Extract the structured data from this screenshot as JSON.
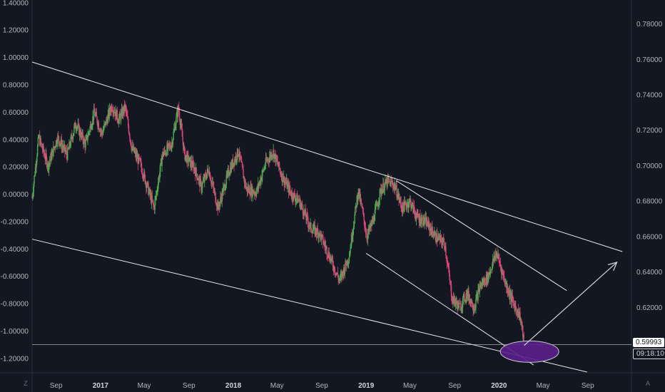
{
  "chart_data": {
    "type": "candlestick",
    "title": "",
    "left_axis": {
      "ylim": [
        -1.3,
        1.42
      ],
      "ticks": [
        "1.40000",
        "1.20000",
        "1.00000",
        "0.80000",
        "0.60000",
        "0.40000",
        "0.20000",
        "0.00000",
        "-0.20000",
        "-0.40000",
        "-0.60000",
        "-0.80000",
        "-1.00000",
        "-1.20000"
      ]
    },
    "right_axis": {
      "ylim": [
        0.5835,
        0.7935
      ],
      "ticks": [
        "0.78000",
        "0.76000",
        "0.74000",
        "0.72000",
        "0.70000",
        "0.68000",
        "0.66000",
        "0.64000",
        "0.62000"
      ]
    },
    "x_axis": {
      "ticks": [
        {
          "label": "Sep",
          "date": "2016-09-01"
        },
        {
          "label": "2017",
          "date": "2017-01-01",
          "bold": true
        },
        {
          "label": "May",
          "date": "2017-05-01"
        },
        {
          "label": "Sep",
          "date": "2017-09-01"
        },
        {
          "label": "2018",
          "date": "2018-01-01",
          "bold": true
        },
        {
          "label": "May",
          "date": "2018-05-01"
        },
        {
          "label": "Sep",
          "date": "2018-09-01"
        },
        {
          "label": "2019",
          "date": "2019-01-01",
          "bold": true
        },
        {
          "label": "May",
          "date": "2019-05-01"
        },
        {
          "label": "Sep",
          "date": "2019-09-01"
        },
        {
          "label": "2020",
          "date": "2020-01-01",
          "bold": true
        },
        {
          "label": "May",
          "date": "2020-05-01"
        },
        {
          "label": "Sep",
          "date": "2020-09-01"
        }
      ]
    },
    "price_path": [
      [
        "2016-06-27",
        0.682
      ],
      [
        "2016-07-15",
        0.716
      ],
      [
        "2016-08-10",
        0.7
      ],
      [
        "2016-09-05",
        0.716
      ],
      [
        "2016-10-01",
        0.706
      ],
      [
        "2016-10-25",
        0.724
      ],
      [
        "2016-11-20",
        0.712
      ],
      [
        "2016-12-15",
        0.73
      ],
      [
        "2017-01-05",
        0.718
      ],
      [
        "2017-02-01",
        0.734
      ],
      [
        "2017-02-20",
        0.726
      ],
      [
        "2017-03-10",
        0.733
      ],
      [
        "2017-03-28",
        0.71
      ],
      [
        "2017-04-20",
        0.701
      ],
      [
        "2017-05-10",
        0.688
      ],
      [
        "2017-05-28",
        0.676
      ],
      [
        "2017-06-20",
        0.706
      ],
      [
        "2017-07-15",
        0.712
      ],
      [
        "2017-08-03",
        0.733
      ],
      [
        "2017-08-20",
        0.706
      ],
      [
        "2017-09-15",
        0.699
      ],
      [
        "2017-10-05",
        0.688
      ],
      [
        "2017-10-25",
        0.698
      ],
      [
        "2017-11-20",
        0.676
      ],
      [
        "2017-12-20",
        0.697
      ],
      [
        "2018-01-15",
        0.708
      ],
      [
        "2018-02-05",
        0.687
      ],
      [
        "2018-03-05",
        0.685
      ],
      [
        "2018-04-01",
        0.702
      ],
      [
        "2018-04-20",
        0.708
      ],
      [
        "2018-05-15",
        0.694
      ],
      [
        "2018-06-10",
        0.684
      ],
      [
        "2018-07-01",
        0.68
      ],
      [
        "2018-08-01",
        0.665
      ],
      [
        "2018-08-25",
        0.662
      ],
      [
        "2018-09-20",
        0.65
      ],
      [
        "2018-10-20",
        0.635
      ],
      [
        "2018-11-15",
        0.649
      ],
      [
        "2018-12-10",
        0.686
      ],
      [
        "2018-12-20",
        0.676
      ],
      [
        "2019-01-03",
        0.66
      ],
      [
        "2019-01-20",
        0.669
      ],
      [
        "2019-02-10",
        0.686
      ],
      [
        "2019-03-01",
        0.691
      ],
      [
        "2019-03-20",
        0.689
      ],
      [
        "2019-04-10",
        0.676
      ],
      [
        "2019-05-01",
        0.68
      ],
      [
        "2019-05-20",
        0.671
      ],
      [
        "2019-06-15",
        0.668
      ],
      [
        "2019-07-10",
        0.66
      ],
      [
        "2019-08-05",
        0.656
      ],
      [
        "2019-08-25",
        0.625
      ],
      [
        "2019-09-15",
        0.62
      ],
      [
        "2019-10-05",
        0.628
      ],
      [
        "2019-10-25",
        0.62
      ],
      [
        "2019-11-10",
        0.632
      ],
      [
        "2019-12-01",
        0.637
      ],
      [
        "2019-12-25",
        0.651
      ],
      [
        "2020-01-20",
        0.633
      ],
      [
        "2020-02-10",
        0.622
      ],
      [
        "2020-02-28",
        0.615
      ],
      [
        "2020-03-10",
        0.6
      ]
    ],
    "trendlines": [
      {
        "name": "channel-upper",
        "from": [
          "2016-06-27",
          0.7585
        ],
        "to": [
          "2020-12-05",
          0.6515
        ]
      },
      {
        "name": "channel-lower",
        "from": [
          "2016-06-27",
          0.6585
        ],
        "to": [
          "2020-08-30",
          0.5835
        ]
      },
      {
        "name": "wedge-upper",
        "from": [
          "2019-03-25",
          0.6915
        ],
        "to": [
          "2020-07-05",
          0.6295
        ]
      },
      {
        "name": "wedge-lower",
        "from": [
          "2019-01-01",
          0.6505
        ],
        "to": [
          "2020-04-05",
          0.5875
        ]
      },
      {
        "name": "current-price-level",
        "from": [
          "2016-06-27",
          0.599
        ],
        "to": [
          "2020-12-30",
          0.599
        ]
      }
    ],
    "projection_arrow": {
      "from": [
        "2020-03-10",
        0.5985
      ],
      "to": [
        "2020-11-20",
        0.6455
      ]
    },
    "highlight_ellipse": {
      "center": [
        "2020-03-25",
        0.595
      ],
      "color": "#5b1f8a"
    },
    "current_price": "0.59993",
    "countdown": "09:18:10",
    "colors": {
      "up": "#4caf50",
      "down": "#e0457b",
      "lines": "#ffffff",
      "background": "#131722"
    }
  },
  "chrome": {
    "left_corner_label": "Z",
    "right_corner_label": "A"
  }
}
